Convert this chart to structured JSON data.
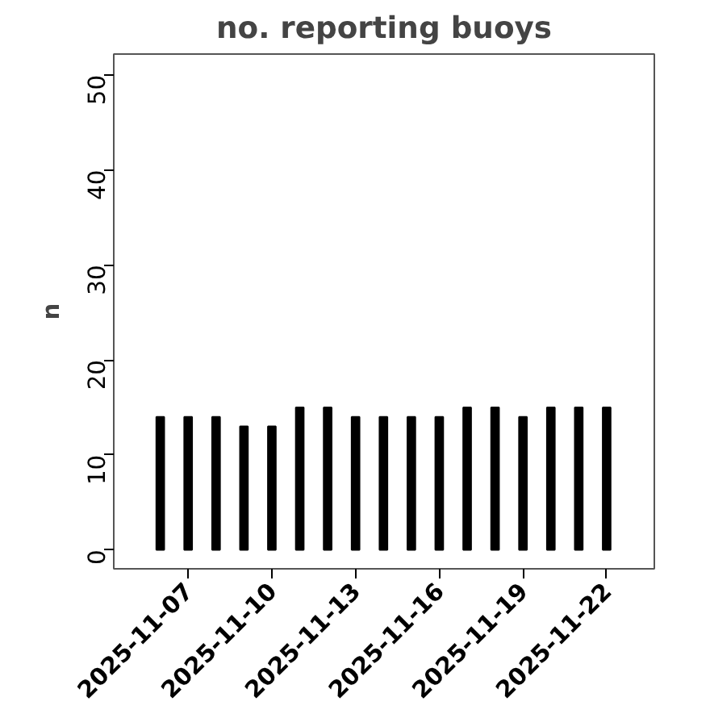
{
  "chart_data": {
    "type": "bar",
    "title": "no. reporting buoys",
    "ylabel": "n",
    "x": [
      "2025-11-06",
      "2025-11-07",
      "2025-11-08",
      "2025-11-09",
      "2025-11-10",
      "2025-11-11",
      "2025-11-12",
      "2025-11-13",
      "2025-11-14",
      "2025-11-15",
      "2025-11-16",
      "2025-11-17",
      "2025-11-18",
      "2025-11-19",
      "2025-11-20",
      "2025-11-21",
      "2025-11-22"
    ],
    "values": [
      14,
      14,
      14,
      13,
      13,
      15,
      15,
      14,
      14,
      14,
      14,
      15,
      15,
      14,
      15,
      15,
      15
    ],
    "color": "#000000",
    "xlim": [
      "2025-11-04T08:00",
      "2025-11-23T17:00"
    ],
    "xticks": [
      "2025-11-07",
      "2025-11-10",
      "2025-11-13",
      "2025-11-16",
      "2025-11-19",
      "2025-11-22"
    ],
    "ylim": [
      -2,
      52.2
    ],
    "yticks": [
      0,
      10,
      20,
      30,
      40,
      50
    ],
    "grid": false
  }
}
